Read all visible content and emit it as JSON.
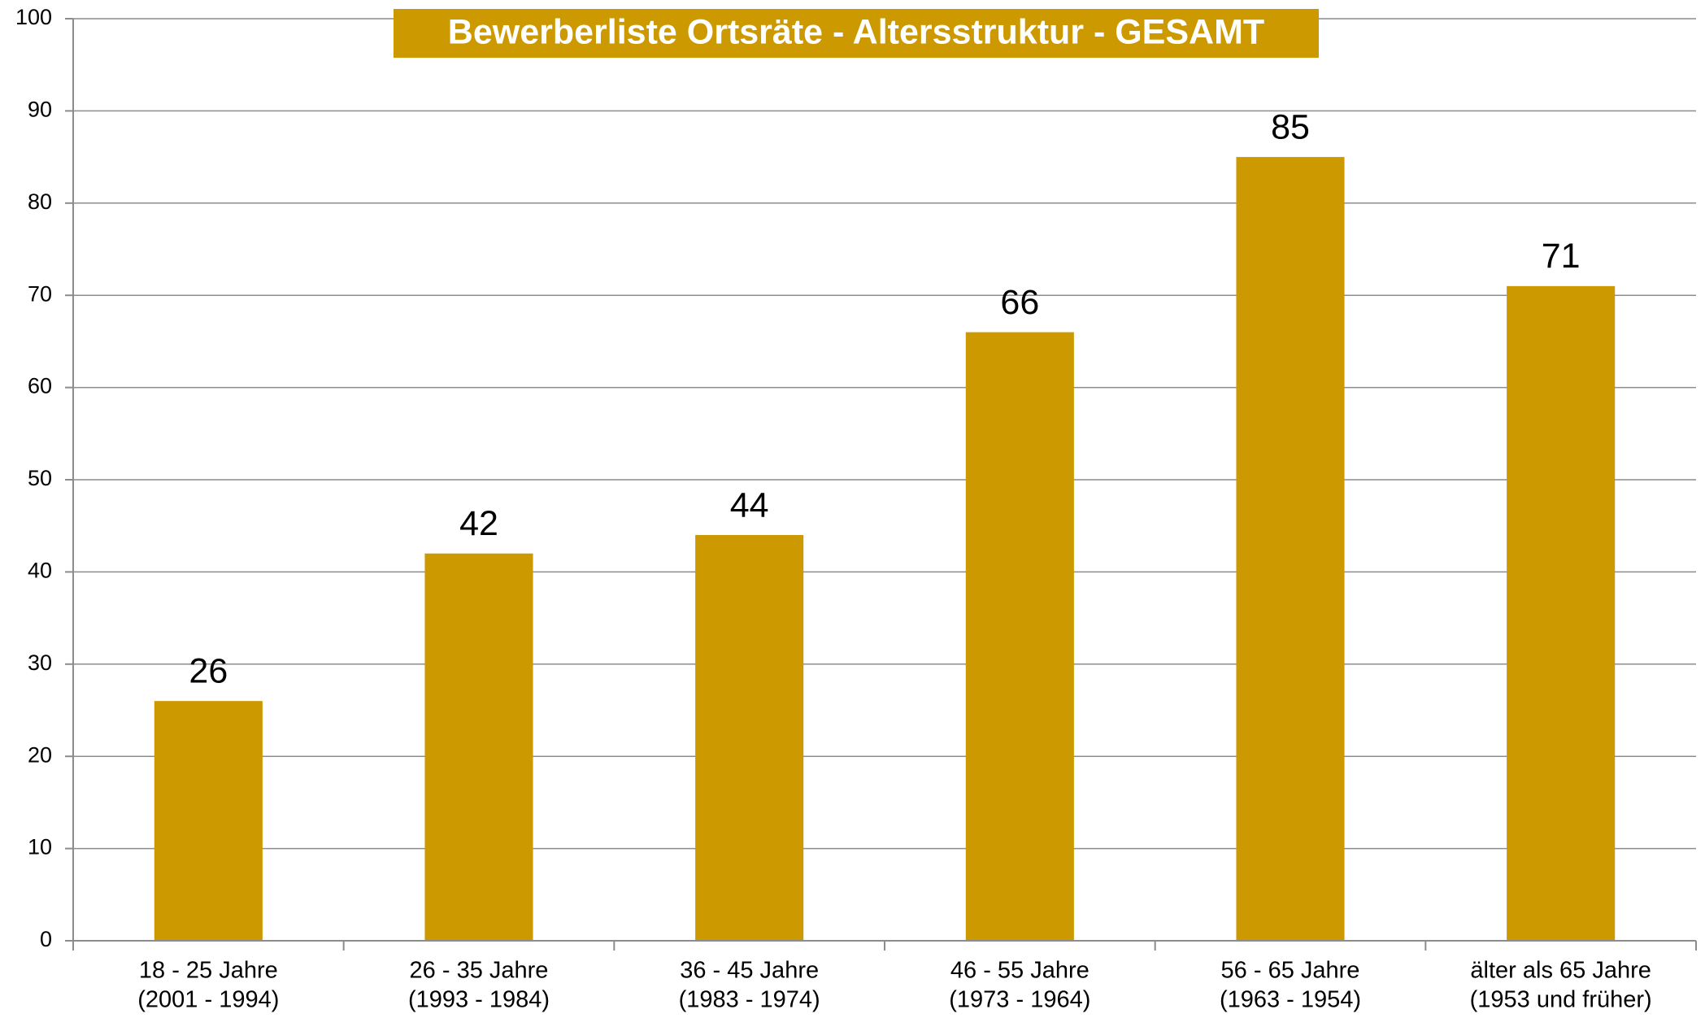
{
  "chart_data": {
    "type": "bar",
    "title": "Bewerberliste Ortsräte - Altersstruktur - GESAMT",
    "categories": [
      [
        "18 - 25 Jahre",
        "(2001 - 1994)"
      ],
      [
        "26 - 35 Jahre",
        "(1993 - 1984)"
      ],
      [
        "36 - 45 Jahre",
        "(1983 - 1974)"
      ],
      [
        "46 - 55 Jahre",
        "(1973 - 1964)"
      ],
      [
        "56 - 65 Jahre",
        "(1963 - 1954)"
      ],
      [
        "älter als 65 Jahre",
        "(1953 und früher)"
      ]
    ],
    "values": [
      26,
      42,
      44,
      66,
      85,
      71
    ],
    "color": "#cc9900",
    "ylim": [
      0,
      100
    ],
    "yticks": [
      0,
      10,
      20,
      30,
      40,
      50,
      60,
      70,
      80,
      90,
      100
    ],
    "grid": true
  }
}
